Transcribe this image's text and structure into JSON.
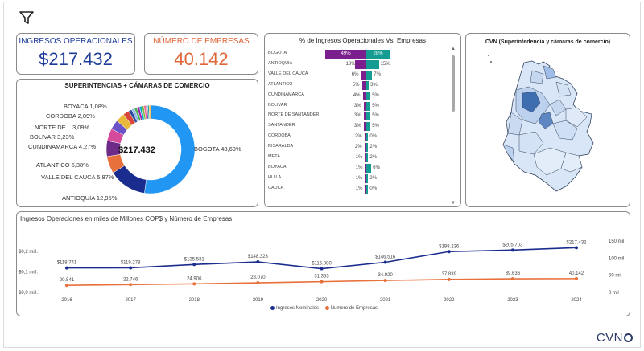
{
  "kpi": {
    "ingresos": {
      "title": "INGRESOS OPERACIONALES",
      "value": "$217.432",
      "color": "#1f3c99"
    },
    "empresas": {
      "title": "NÚMERO DE EMPRESAS",
      "value": "40.142",
      "color": "#e0673a"
    }
  },
  "icons": {
    "filter": "filter-icon",
    "scroll_up": "▲",
    "scroll_down": "▼"
  },
  "colors": {
    "navy": "#1a2d8f",
    "orange": "#e8703a",
    "purple": "#7b1f8e",
    "teal": "#159c92",
    "map_fill": "#d9e6f7",
    "map_dark": "#3e6db0"
  },
  "donut": {
    "title": "SUPERINTENCIAS + CÁMARAS DE COMERCIO",
    "center": "$217.432",
    "labels": {
      "bogota": "BOGOTA 48,69%",
      "antioquia": "ANTIOQUIA 12,95%",
      "valle": "VALLE DEL CAUCA 5,87%",
      "atlantico": "ATLANTICO 5,38%",
      "cundinamarca": "CUNDINAMARCA 4,27%",
      "bolivar": "BOLIVAR 3,23%",
      "norte": "NORTE DE... 3,09%",
      "cordoba": "CORDOBA 2,09%",
      "boyaca": "BOYACA 1,08%"
    }
  },
  "bars": {
    "title": "% de Ingresos Operacionales Vs. Empresas"
  },
  "map": {
    "title": "CVN (Superintedencia y cámaras de comercio)"
  },
  "line": {
    "title": "Ingresos Operaciones en miles de Millones COP$ y Número de Empresas",
    "left_axis": [
      "$0,2 mill.",
      "$0,1 mill.",
      "$0,0 mill."
    ],
    "right_axis": [
      "150 mil",
      "100 mil",
      "50 mil",
      "0 mil"
    ],
    "legend_ingresos": "Ingresos Nominales",
    "legend_empresas": "Numero de Empresas"
  },
  "logo": {
    "text": "CVN"
  },
  "chart_data": [
    {
      "type": "pie",
      "title": "SUPERINTENCIAS + CÁMARAS DE COMERCIO",
      "center_label": "$217.432",
      "slices": [
        {
          "name": "BOGOTA",
          "value": 48.69,
          "color": "#2196f3"
        },
        {
          "name": "ANTIOQUIA",
          "value": 12.95,
          "color": "#1a2d8f"
        },
        {
          "name": "VALLE DEL CAUCA",
          "value": 5.87,
          "color": "#e8703a"
        },
        {
          "name": "ATLANTICO",
          "value": 5.38,
          "color": "#6d2a86"
        },
        {
          "name": "CUNDINAMARCA",
          "value": 4.27,
          "color": "#d64a9b"
        },
        {
          "name": "BOLIVAR",
          "value": 3.23,
          "color": "#6a52c8"
        },
        {
          "name": "NORTE DE...",
          "value": 3.09,
          "color": "#e8b83a"
        },
        {
          "name": "CORDOBA",
          "value": 2.09,
          "color": "#d9463b"
        },
        {
          "name": "BOYACA",
          "value": 1.08,
          "color": "#2c4a9e"
        },
        {
          "name": "",
          "value": 1.0,
          "color": "#8fb9e8"
        },
        {
          "name": "",
          "value": 0.9,
          "color": "#4caf50"
        },
        {
          "name": "",
          "value": 0.9,
          "color": "#9c27b0"
        },
        {
          "name": "",
          "value": 0.8,
          "color": "#00acc1"
        },
        {
          "name": "",
          "value": 0.7,
          "color": "#7cb342"
        },
        {
          "name": "",
          "value": 0.7,
          "color": "#f06292"
        },
        {
          "name": "",
          "value": 0.6,
          "color": "#5c6bc0"
        },
        {
          "name": "",
          "value": 0.5,
          "color": "#26a69a"
        },
        {
          "name": "",
          "value": 0.5,
          "color": "#ffa726"
        }
      ]
    },
    {
      "type": "bar",
      "orientation": "horizontal",
      "stacked": true,
      "title": "% de Ingresos Operacionales Vs. Empresas",
      "categories": [
        "BOGOTA",
        "ANTIOQUIA",
        "VALLE DEL CAUCA",
        "ATLANTICO",
        "CUNDINAMARCA",
        "BOLIVAR",
        "NORTE DE SANTANDER",
        "SANTANDER",
        "CORDOBA",
        "RISARALDA",
        "META",
        "BOYACA",
        "HUILA",
        "CAUCA"
      ],
      "series": [
        {
          "values": [
            49,
            13,
            6,
            5,
            4,
            3,
            3,
            3,
            2,
            2,
            1,
            1,
            1,
            1
          ],
          "labels": [
            "49%",
            "13%",
            "6%",
            "5%",
            "4%",
            "3%",
            "3%",
            "3%",
            "2%",
            "2%",
            "1%",
            "1%",
            "1%",
            "1%"
          ],
          "color": "#7b1f8e"
        },
        {
          "values": [
            28,
            15,
            7,
            3,
            5,
            5,
            5,
            5,
            0,
            2,
            2,
            6,
            2,
            0
          ],
          "labels": [
            "28%",
            "15%",
            "7%",
            "3%",
            "5%",
            "5%",
            "5%",
            "5%",
            "0%",
            "2%",
            "2%",
            "6%",
            "2%",
            "0%"
          ],
          "color": "#159c92"
        }
      ]
    },
    {
      "type": "line",
      "title": "Ingresos Operaciones en miles de Millones COP$ y Número de Empresas",
      "x": [
        "2016",
        "2017",
        "2018",
        "2019",
        "2020",
        "2021",
        "2022",
        "2023",
        "2024"
      ],
      "series": [
        {
          "name": "Ingresos Nominales",
          "axis": "left",
          "values": [
            118741,
            119278,
            135531,
            148323,
            115080,
            146516,
            198236,
            205703,
            217432
          ],
          "labels": [
            "$118.741",
            "$119.278",
            "$135.531",
            "$148.323",
            "$115.080",
            "$146.516",
            "$198.236",
            "$205.703",
            "$217.432"
          ],
          "color": "#1a2d8f"
        },
        {
          "name": "Numero de Empresas",
          "axis": "right",
          "values": [
            20541,
            22746,
            24906,
            28070,
            31353,
            34920,
            37839,
            39636,
            40142
          ],
          "labels": [
            "20.541",
            "22.746",
            "24.906",
            "28.070",
            "31.353",
            "34.920",
            "37.839",
            "39.636",
            "40.142"
          ],
          "color": "#e8703a"
        }
      ],
      "ylim_left": [
        0,
        250000
      ],
      "ylim_right": [
        0,
        150000
      ],
      "grid": false,
      "legend": "bottom"
    }
  ]
}
